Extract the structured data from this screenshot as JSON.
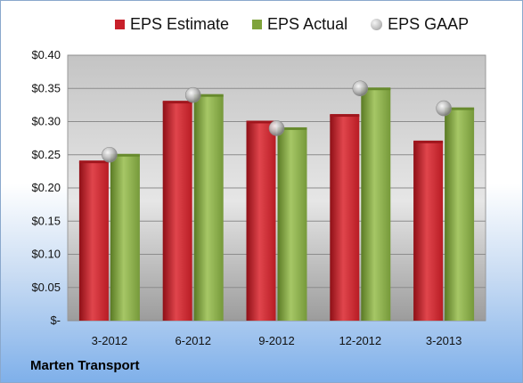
{
  "chart_data": {
    "type": "bar",
    "categories": [
      "3-2012",
      "6-2012",
      "9-2012",
      "12-2012",
      "3-2013"
    ],
    "series": [
      {
        "name": "EPS Estimate",
        "values": [
          0.24,
          0.33,
          0.3,
          0.31,
          0.27
        ],
        "color": "#c8202a"
      },
      {
        "name": "EPS Actual",
        "values": [
          0.25,
          0.34,
          0.29,
          0.35,
          0.32
        ],
        "color": "#7fa33b"
      },
      {
        "name": "EPS GAAP",
        "values": [
          0.25,
          0.34,
          0.29,
          0.35,
          0.32
        ],
        "color": "#b0b0b0",
        "marker": "sphere"
      }
    ],
    "ylim": [
      0,
      0.4
    ],
    "yticks": [
      0,
      0.05,
      0.1,
      0.15,
      0.2,
      0.25,
      0.3,
      0.35,
      0.4
    ],
    "ytick_labels": [
      "$-",
      "$0.05",
      "$0.10",
      "$0.15",
      "$0.20",
      "$0.25",
      "$0.30",
      "$0.35",
      "$0.40"
    ],
    "grid": true,
    "legend_position": "top"
  },
  "footer": {
    "brand": "Marten Transport"
  }
}
